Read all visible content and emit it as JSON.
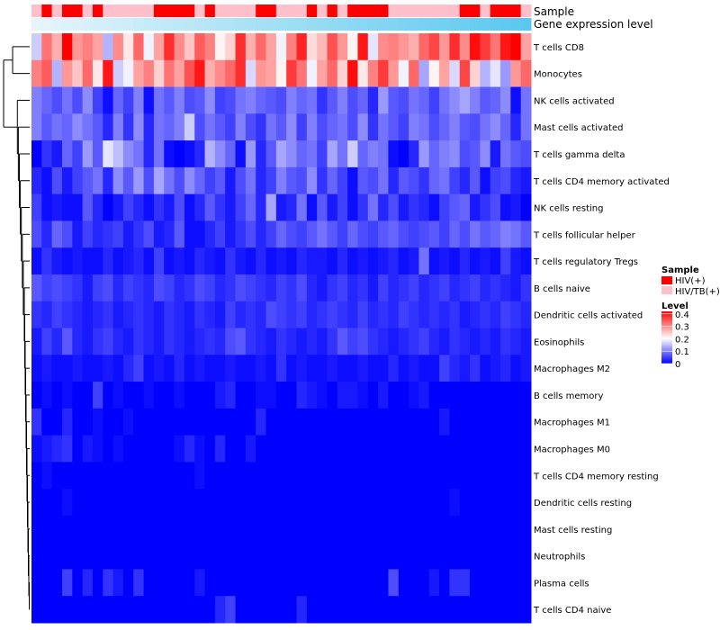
{
  "chart_data": {
    "type": "heatmap",
    "annotation_labels": {
      "sample": "Sample",
      "gene_expression": "Gene expression level"
    },
    "rows": [
      "T cells CD8",
      "Monocytes",
      "NK cells activated",
      "Mast cells activated",
      "T cells gamma delta",
      "T cells CD4 memory activated",
      "NK cells resting",
      "T cells follicular helper",
      "T cells regulatory  Tregs",
      "B cells naive",
      "Dendritic cells activated",
      "Eosinophils",
      "Macrophages M2",
      "B cells memory",
      "Macrophages M1",
      "Macrophages M0",
      "T cells CD4 memory resting",
      "Dendritic cells resting",
      "Mast cells resting",
      "Neutrophils",
      "Plasma cells",
      "T cells CD4 naive"
    ],
    "sample_groups": [
      "HIV/TB(+)",
      "HIV(+)",
      "HIV/TB(+)",
      "HIV(+)",
      "HIV(+)",
      "HIV/TB(+)",
      "HIV(+)",
      "HIV/TB(+)",
      "HIV/TB(+)",
      "HIV/TB(+)",
      "HIV/TB(+)",
      "HIV/TB(+)",
      "HIV(+)",
      "HIV(+)",
      "HIV(+)",
      "HIV(+)",
      "HIV/TB(+)",
      "HIV(+)",
      "HIV/TB(+)",
      "HIV/TB(+)",
      "HIV/TB(+)",
      "HIV/TB(+)",
      "HIV(+)",
      "HIV(+)",
      "HIV/TB(+)",
      "HIV/TB(+)",
      "HIV/TB(+)",
      "HIV(+)",
      "HIV/TB(+)",
      "HIV(+)",
      "HIV/TB(+)",
      "HIV(+)",
      "HIV(+)",
      "HIV(+)",
      "HIV(+)",
      "HIV/TB(+)",
      "HIV/TB(+)",
      "HIV/TB(+)",
      "HIV/TB(+)",
      "HIV/TB(+)",
      "HIV/TB(+)",
      "HIV/TB(+)",
      "HIV(+)",
      "HIV(+)",
      "HIV/TB(+)",
      "HIV(+)",
      "HIV(+)",
      "HIV(+)",
      "HIV/TB(+)"
    ],
    "gene_expression_level_rank": [
      1,
      2,
      3,
      4,
      5,
      6,
      7,
      8,
      9,
      10,
      11,
      12,
      13,
      14,
      15,
      16,
      17,
      18,
      19,
      20,
      21,
      22,
      23,
      24,
      25,
      26,
      27,
      28,
      29,
      30,
      31,
      32,
      33,
      34,
      35,
      36,
      37,
      38,
      39,
      40,
      41,
      42,
      43,
      44,
      45,
      46,
      47,
      48,
      49
    ],
    "values": [
      [
        0.16,
        0.32,
        0.27,
        0.42,
        0.29,
        0.31,
        0.28,
        0.14,
        0.3,
        0.22,
        0.33,
        0.19,
        0.28,
        0.38,
        0.3,
        0.25,
        0.34,
        0.31,
        0.21,
        0.24,
        0.38,
        0.27,
        0.33,
        0.28,
        0.19,
        0.31,
        0.39,
        0.23,
        0.26,
        0.35,
        0.29,
        0.21,
        0.4,
        0.18,
        0.3,
        0.31,
        0.29,
        0.27,
        0.33,
        0.36,
        0.29,
        0.38,
        0.3,
        0.41,
        0.37,
        0.32,
        0.4,
        0.42,
        0.28
      ],
      [
        0.31,
        0.34,
        0.14,
        0.29,
        0.25,
        0.33,
        0.22,
        0.4,
        0.16,
        0.19,
        0.28,
        0.31,
        0.24,
        0.32,
        0.28,
        0.35,
        0.4,
        0.27,
        0.3,
        0.33,
        0.38,
        0.17,
        0.29,
        0.28,
        0.21,
        0.37,
        0.32,
        0.19,
        0.28,
        0.33,
        0.24,
        0.41,
        0.22,
        0.31,
        0.37,
        0.29,
        0.19,
        0.33,
        0.13,
        0.21,
        0.28,
        0.17,
        0.36,
        0.24,
        0.14,
        0.18,
        0.12,
        0.29,
        0.33
      ],
      [
        0.1,
        0.08,
        0.06,
        0.09,
        0.06,
        0.11,
        0.05,
        0.01,
        0.08,
        0.05,
        0.1,
        0.01,
        0.09,
        0.07,
        0.1,
        0.06,
        0.07,
        0.11,
        0.05,
        0.06,
        0.09,
        0.1,
        0.08,
        0.07,
        0.06,
        0.1,
        0.08,
        0.09,
        0.04,
        0.07,
        0.1,
        0.06,
        0.08,
        0.03,
        0.12,
        0.07,
        0.06,
        0.09,
        0.08,
        0.05,
        0.09,
        0.11,
        0.13,
        0.1,
        0.07,
        0.08,
        0.11,
        0.01,
        0.09
      ],
      [
        0.1,
        0.07,
        0.09,
        0.08,
        0.11,
        0.09,
        0.07,
        0.03,
        0.1,
        0.04,
        0.11,
        0.03,
        0.09,
        0.08,
        0.1,
        0.16,
        0.06,
        0.09,
        0.07,
        0.05,
        0.1,
        0.06,
        0.04,
        0.09,
        0.07,
        0.11,
        0.05,
        0.1,
        0.06,
        0.08,
        0.09,
        0.06,
        0.11,
        0.04,
        0.09,
        0.07,
        0.05,
        0.1,
        0.09,
        0.06,
        0.08,
        0.1,
        0.07,
        0.06,
        0.09,
        0.11,
        0.08,
        0.03,
        0.09
      ],
      [
        0.0,
        0.04,
        0.02,
        0.08,
        0.05,
        0.12,
        0.07,
        0.18,
        0.15,
        0.11,
        0.09,
        0.03,
        0.09,
        0.01,
        0.0,
        0.01,
        0.03,
        0.14,
        0.11,
        0.08,
        0.01,
        0.12,
        0.03,
        0.07,
        0.13,
        0.11,
        0.08,
        0.09,
        0.05,
        0.13,
        0.09,
        0.16,
        0.08,
        0.1,
        0.09,
        0.01,
        0.0,
        0.03,
        0.12,
        0.08,
        0.1,
        0.11,
        0.06,
        0.07,
        0.11,
        0.02,
        0.09,
        0.07,
        0.06
      ],
      [
        0.03,
        0.01,
        0.06,
        0.02,
        0.05,
        0.07,
        0.09,
        0.03,
        0.11,
        0.07,
        0.12,
        0.06,
        0.13,
        0.09,
        0.06,
        0.11,
        0.08,
        0.05,
        0.07,
        0.02,
        0.06,
        0.09,
        0.03,
        0.05,
        0.1,
        0.07,
        0.06,
        0.11,
        0.04,
        0.08,
        0.05,
        0.01,
        0.07,
        0.06,
        0.09,
        0.03,
        0.07,
        0.06,
        0.04,
        0.08,
        0.09,
        0.05,
        0.03,
        0.07,
        0.01,
        0.05,
        0.06,
        0.03,
        0.02
      ],
      [
        0.05,
        0.01,
        0.02,
        0.01,
        0.01,
        0.07,
        0.03,
        0.0,
        0.02,
        0.05,
        0.03,
        0.01,
        0.04,
        0.02,
        0.06,
        0.01,
        0.03,
        0.07,
        0.04,
        0.02,
        0.05,
        0.08,
        0.03,
        0.13,
        0.02,
        0.03,
        0.09,
        0.01,
        0.07,
        0.02,
        0.05,
        0.01,
        0.04,
        0.09,
        0.03,
        0.06,
        0.02,
        0.04,
        0.03,
        0.01,
        0.05,
        0.07,
        0.08,
        0.02,
        0.04,
        0.06,
        0.01,
        0.02,
        0.0
      ],
      [
        0.06,
        0.03,
        0.08,
        0.06,
        0.02,
        0.05,
        0.03,
        0.04,
        0.05,
        0.02,
        0.04,
        0.06,
        0.02,
        0.03,
        0.07,
        0.01,
        0.01,
        0.03,
        0.05,
        0.02,
        0.04,
        0.06,
        0.03,
        0.05,
        0.08,
        0.06,
        0.05,
        0.07,
        0.09,
        0.07,
        0.05,
        0.08,
        0.06,
        0.05,
        0.07,
        0.08,
        0.06,
        0.05,
        0.06,
        0.07,
        0.05,
        0.08,
        0.06,
        0.09,
        0.07,
        0.08,
        0.1,
        0.09,
        0.07
      ],
      [
        0.01,
        0.04,
        0.02,
        0.01,
        0.02,
        0.01,
        0.01,
        0.03,
        0.01,
        0.02,
        0.03,
        0.01,
        0.05,
        0.01,
        0.02,
        0.01,
        0.03,
        0.02,
        0.01,
        0.04,
        0.02,
        0.01,
        0.03,
        0.01,
        0.02,
        0.01,
        0.03,
        0.02,
        0.02,
        0.01,
        0.03,
        0.01,
        0.02,
        0.01,
        0.02,
        0.03,
        0.01,
        0.02,
        0.09,
        0.01,
        0.02,
        0.01,
        0.03,
        0.01,
        0.02,
        0.01,
        0.05,
        0.02,
        0.01
      ],
      [
        0.07,
        0.05,
        0.06,
        0.05,
        0.04,
        0.02,
        0.05,
        0.06,
        0.03,
        0.05,
        0.04,
        0.03,
        0.06,
        0.05,
        0.03,
        0.04,
        0.06,
        0.05,
        0.03,
        0.04,
        0.06,
        0.05,
        0.04,
        0.03,
        0.05,
        0.04,
        0.06,
        0.03,
        0.02,
        0.04,
        0.05,
        0.03,
        0.04,
        0.02,
        0.05,
        0.03,
        0.04,
        0.05,
        0.03,
        0.04,
        0.05,
        0.03,
        0.04,
        0.05,
        0.03,
        0.04,
        0.03,
        0.02,
        0.04
      ],
      [
        0.04,
        0.03,
        0.05,
        0.04,
        0.03,
        0.02,
        0.03,
        0.04,
        0.02,
        0.03,
        0.04,
        0.03,
        0.02,
        0.04,
        0.03,
        0.02,
        0.04,
        0.03,
        0.02,
        0.05,
        0.03,
        0.04,
        0.03,
        0.06,
        0.05,
        0.04,
        0.05,
        0.03,
        0.04,
        0.05,
        0.04,
        0.03,
        0.05,
        0.03,
        0.04,
        0.03,
        0.05,
        0.04,
        0.03,
        0.04,
        0.03,
        0.04,
        0.02,
        0.03,
        0.04,
        0.03,
        0.05,
        0.04,
        0.03
      ],
      [
        0.02,
        0.05,
        0.03,
        0.07,
        0.03,
        0.02,
        0.04,
        0.05,
        0.03,
        0.02,
        0.04,
        0.03,
        0.02,
        0.04,
        0.03,
        0.02,
        0.03,
        0.04,
        0.03,
        0.06,
        0.07,
        0.04,
        0.03,
        0.02,
        0.04,
        0.03,
        0.02,
        0.03,
        0.02,
        0.04,
        0.07,
        0.05,
        0.06,
        0.04,
        0.03,
        0.02,
        0.03,
        0.04,
        0.05,
        0.03,
        0.02,
        0.04,
        0.03,
        0.02,
        0.03,
        0.02,
        0.04,
        0.03,
        0.02
      ],
      [
        0.01,
        0.02,
        0.01,
        0.01,
        0.02,
        0.01,
        0.01,
        0.02,
        0.01,
        0.03,
        0.05,
        0.01,
        0.02,
        0.01,
        0.03,
        0.01,
        0.02,
        0.01,
        0.01,
        0.02,
        0.01,
        0.01,
        0.02,
        0.01,
        0.04,
        0.01,
        0.02,
        0.01,
        0.01,
        0.02,
        0.01,
        0.01,
        0.02,
        0.01,
        0.01,
        0.03,
        0.01,
        0.02,
        0.01,
        0.01,
        0.05,
        0.03,
        0.02,
        0.04,
        0.01,
        0.02,
        0.03,
        0.01,
        0.02
      ],
      [
        0.0,
        0.01,
        0.0,
        0.01,
        0.0,
        0.0,
        0.05,
        0.0,
        0.01,
        0.0,
        0.0,
        0.01,
        0.0,
        0.0,
        0.01,
        0.0,
        0.0,
        0.0,
        0.02,
        0.03,
        0.0,
        0.0,
        0.01,
        0.01,
        0.0,
        0.0,
        0.03,
        0.02,
        0.01,
        0.0,
        0.02,
        0.02,
        0.01,
        0.0,
        0.02,
        0.0,
        0.0,
        0.01,
        0.02,
        0.0,
        0.0,
        0.0,
        0.0,
        0.0,
        0.0,
        0.0,
        0.0,
        0.0,
        0.0
      ],
      [
        0.04,
        0.0,
        0.0,
        0.03,
        0.0,
        0.0,
        0.01,
        0.0,
        0.0,
        0.01,
        0.0,
        0.0,
        0.0,
        0.0,
        0.0,
        0.0,
        0.0,
        0.0,
        0.0,
        0.0,
        0.0,
        0.0,
        0.03,
        0.0,
        0.0,
        0.0,
        0.0,
        0.0,
        0.0,
        0.0,
        0.0,
        0.0,
        0.0,
        0.0,
        0.0,
        0.0,
        0.0,
        0.0,
        0.0,
        0.0,
        0.02,
        0.0,
        0.0,
        0.0,
        0.0,
        0.0,
        0.0,
        0.0,
        0.0
      ],
      [
        0.01,
        0.02,
        0.03,
        0.04,
        0.0,
        0.02,
        0.01,
        0.0,
        0.01,
        0.0,
        0.0,
        0.0,
        0.0,
        0.0,
        0.01,
        0.03,
        0.01,
        0.0,
        0.03,
        0.0,
        0.0,
        0.02,
        0.0,
        0.0,
        0.0,
        0.0,
        0.0,
        0.0,
        0.0,
        0.0,
        0.0,
        0.0,
        0.0,
        0.0,
        0.0,
        0.0,
        0.0,
        0.0,
        0.0,
        0.0,
        0.0,
        0.0,
        0.0,
        0.0,
        0.0,
        0.0,
        0.0,
        0.0,
        0.0
      ],
      [
        0.0,
        0.01,
        0.0,
        0.0,
        0.0,
        0.0,
        0.0,
        0.0,
        0.0,
        0.0,
        0.0,
        0.0,
        0.0,
        0.0,
        0.0,
        0.0,
        0.01,
        0.0,
        0.0,
        0.0,
        0.0,
        0.0,
        0.0,
        0.0,
        0.0,
        0.0,
        0.0,
        0.0,
        0.0,
        0.0,
        0.0,
        0.0,
        0.0,
        0.0,
        0.0,
        0.0,
        0.0,
        0.0,
        0.0,
        0.0,
        0.0,
        0.0,
        0.0,
        0.0,
        0.0,
        0.0,
        0.0,
        0.0,
        0.0
      ],
      [
        0.0,
        0.0,
        0.0,
        0.01,
        0.0,
        0.0,
        0.0,
        0.0,
        0.0,
        0.0,
        0.0,
        0.0,
        0.0,
        0.0,
        0.0,
        0.0,
        0.0,
        0.0,
        0.0,
        0.0,
        0.0,
        0.0,
        0.0,
        0.0,
        0.0,
        0.0,
        0.0,
        0.0,
        0.0,
        0.0,
        0.0,
        0.0,
        0.0,
        0.0,
        0.0,
        0.0,
        0.0,
        0.0,
        0.0,
        0.0,
        0.0,
        0.01,
        0.0,
        0.0,
        0.0,
        0.0,
        0.0,
        0.0,
        0.0
      ],
      [
        0.0,
        0.0,
        0.0,
        0.0,
        0.0,
        0.0,
        0.0,
        0.0,
        0.0,
        0.0,
        0.0,
        0.0,
        0.0,
        0.0,
        0.0,
        0.0,
        0.0,
        0.0,
        0.0,
        0.0,
        0.0,
        0.0,
        0.0,
        0.0,
        0.0,
        0.0,
        0.0,
        0.0,
        0.0,
        0.0,
        0.0,
        0.0,
        0.0,
        0.0,
        0.0,
        0.0,
        0.0,
        0.0,
        0.0,
        0.0,
        0.0,
        0.0,
        0.0,
        0.0,
        0.0,
        0.0,
        0.0,
        0.0,
        0.0
      ],
      [
        0.0,
        0.0,
        0.0,
        0.0,
        0.0,
        0.0,
        0.0,
        0.0,
        0.0,
        0.0,
        0.0,
        0.0,
        0.0,
        0.0,
        0.0,
        0.0,
        0.0,
        0.0,
        0.0,
        0.0,
        0.0,
        0.0,
        0.0,
        0.0,
        0.0,
        0.0,
        0.0,
        0.0,
        0.0,
        0.0,
        0.0,
        0.0,
        0.0,
        0.0,
        0.0,
        0.0,
        0.0,
        0.0,
        0.0,
        0.0,
        0.0,
        0.0,
        0.0,
        0.0,
        0.0,
        0.0,
        0.0,
        0.0,
        0.0
      ],
      [
        0.0,
        0.0,
        0.0,
        0.05,
        0.0,
        0.03,
        0.0,
        0.04,
        0.02,
        0.0,
        0.04,
        0.0,
        0.0,
        0.0,
        0.0,
        0.0,
        0.02,
        0.0,
        0.0,
        0.0,
        0.0,
        0.0,
        0.0,
        0.0,
        0.0,
        0.0,
        0.0,
        0.0,
        0.0,
        0.0,
        0.0,
        0.0,
        0.0,
        0.0,
        0.0,
        0.06,
        0.0,
        0.0,
        0.0,
        0.02,
        0.0,
        0.04,
        0.04,
        0.0,
        0.0,
        0.0,
        0.0,
        0.0,
        0.0
      ],
      [
        0.0,
        0.0,
        0.0,
        0.0,
        0.0,
        0.0,
        0.0,
        0.0,
        0.0,
        0.0,
        0.0,
        0.0,
        0.0,
        0.0,
        0.0,
        0.0,
        0.0,
        0.0,
        0.03,
        0.05,
        0.0,
        0.0,
        0.0,
        0.0,
        0.0,
        0.0,
        0.03,
        0.0,
        0.0,
        0.0,
        0.0,
        0.0,
        0.0,
        0.0,
        0.0,
        0.0,
        0.0,
        0.0,
        0.0,
        0.0,
        0.0,
        0.0,
        0.0,
        0.0,
        0.0,
        0.0,
        0.0,
        0.0,
        0.0
      ]
    ],
    "legend": {
      "sample_title": "Sample",
      "sample_entries": [
        {
          "label": "HIV(+)",
          "color": "#ff0000"
        },
        {
          "label": "HIV/TB(+)",
          "color": "#ffc0cb"
        }
      ],
      "level_title": "Level",
      "level_ticks": [
        "0.4",
        "0.3",
        "0.2",
        "0.1",
        "0"
      ],
      "level_tick_values": [
        0.4,
        0.3,
        0.2,
        0.1,
        0
      ],
      "level_range": [
        0,
        0.42
      ]
    },
    "colors": {
      "low": "#0000ff",
      "mid": "#ffffff",
      "high": "#ff0000",
      "mid_value": 0.2,
      "gene_expression_start": "#e6f5fb",
      "gene_expression_end": "#5bc8ef"
    }
  }
}
